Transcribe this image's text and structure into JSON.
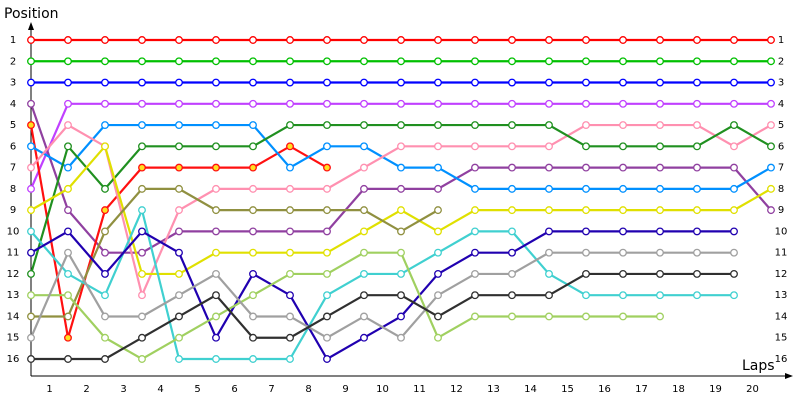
{
  "chart_data": {
    "type": "line",
    "title": "Position",
    "x_label": "Laps",
    "x": [
      0,
      1,
      2,
      3,
      4,
      5,
      6,
      7,
      8,
      9,
      10,
      11,
      12,
      13,
      14,
      15,
      16,
      17,
      18,
      19,
      20
    ],
    "xlim": [
      0,
      20
    ],
    "xticks": [
      1,
      2,
      3,
      4,
      5,
      6,
      7,
      8,
      9,
      10,
      11,
      12,
      13,
      14,
      15,
      16,
      17,
      18,
      19,
      20
    ],
    "ylim": [
      1,
      16
    ],
    "yticks": [
      1,
      2,
      3,
      4,
      5,
      6,
      7,
      8,
      9,
      10,
      11,
      12,
      13,
      14,
      15,
      16
    ],
    "y_inverted": true,
    "series": [
      {
        "color": "#ff0000",
        "values": [
          1,
          1,
          1,
          1,
          1,
          1,
          1,
          1,
          1,
          1,
          1,
          1,
          1,
          1,
          1,
          1,
          1,
          1,
          1,
          1,
          1
        ]
      },
      {
        "color": "#00c000",
        "values": [
          2,
          2,
          2,
          2,
          2,
          2,
          2,
          2,
          2,
          2,
          2,
          2,
          2,
          2,
          2,
          2,
          2,
          2,
          2,
          2,
          2
        ]
      },
      {
        "color": "#0000ff",
        "values": [
          3,
          3,
          3,
          3,
          3,
          3,
          3,
          3,
          3,
          3,
          3,
          3,
          3,
          3,
          3,
          3,
          3,
          3,
          3,
          3,
          3
        ]
      },
      {
        "color": "#c040ff",
        "values": [
          8,
          4,
          4,
          4,
          4,
          4,
          4,
          4,
          4,
          4,
          4,
          4,
          4,
          4,
          4,
          4,
          4,
          4,
          4,
          4,
          4
        ]
      },
      {
        "color": "#9040a0",
        "values": [
          4,
          9,
          11,
          11,
          10,
          10,
          10,
          10,
          10,
          8,
          8,
          8,
          7,
          7,
          7,
          7,
          7,
          7,
          7,
          7,
          9
        ]
      },
      {
        "color": "#ff1010",
        "marker_fill": "#ffe020",
        "values": [
          5,
          15,
          9,
          7,
          7,
          7,
          7,
          6,
          7,
          null,
          null,
          null,
          null,
          null,
          null,
          null,
          null,
          null,
          null,
          null,
          null
        ]
      },
      {
        "color": "#0090ff",
        "values": [
          6,
          7,
          5,
          5,
          5,
          5,
          5,
          7,
          6,
          6,
          7,
          7,
          8,
          8,
          8,
          8,
          8,
          8,
          8,
          8,
          7
        ]
      },
      {
        "color": "#ff90b0",
        "values": [
          7,
          5,
          6,
          13,
          9,
          8,
          8,
          8,
          8,
          7,
          6,
          6,
          6,
          6,
          6,
          5,
          5,
          5,
          5,
          6,
          5
        ]
      },
      {
        "color": "#209020",
        "values": [
          12,
          6,
          8,
          6,
          6,
          6,
          6,
          5,
          5,
          5,
          5,
          5,
          5,
          5,
          5,
          6,
          6,
          6,
          6,
          5,
          6
        ]
      },
      {
        "color": "#e0e000",
        "values": [
          9,
          8,
          6,
          12,
          12,
          11,
          11,
          11,
          11,
          10,
          9,
          10,
          9,
          9,
          9,
          9,
          9,
          9,
          9,
          9,
          8
        ]
      },
      {
        "color": "#909040",
        "values": [
          14,
          14,
          10,
          8,
          8,
          9,
          9,
          9,
          9,
          9,
          10,
          9,
          null,
          null,
          null,
          null,
          null,
          null,
          null,
          null,
          null
        ]
      },
      {
        "color": "#40d0d0",
        "values": [
          10,
          12,
          13,
          9,
          16,
          16,
          16,
          16,
          13,
          12,
          12,
          11,
          10,
          10,
          12,
          13,
          13,
          13,
          13,
          13,
          null
        ]
      },
      {
        "color": "#2000b0",
        "values": [
          11,
          10,
          12,
          10,
          11,
          15,
          12,
          13,
          16,
          15,
          14,
          12,
          11,
          11,
          10,
          10,
          10,
          10,
          10,
          10,
          null
        ]
      },
      {
        "color": "#a0d060",
        "values": [
          13,
          13,
          15,
          16,
          15,
          14,
          13,
          12,
          12,
          11,
          11,
          15,
          14,
          14,
          14,
          14,
          14,
          14,
          null,
          null,
          null
        ]
      },
      {
        "color": "#a0a0a0",
        "values": [
          15,
          11,
          14,
          14,
          13,
          12,
          14,
          14,
          15,
          14,
          15,
          13,
          12,
          12,
          11,
          11,
          11,
          11,
          11,
          11,
          null
        ]
      },
      {
        "color": "#303030",
        "values": [
          16,
          16,
          16,
          15,
          14,
          13,
          15,
          15,
          14,
          13,
          13,
          14,
          13,
          13,
          13,
          12,
          12,
          12,
          12,
          12,
          null
        ]
      }
    ]
  }
}
